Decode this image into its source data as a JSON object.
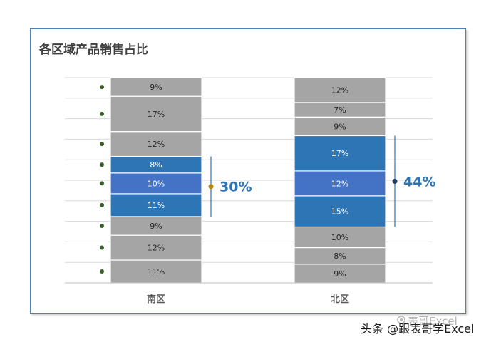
{
  "chart_data": {
    "type": "bar",
    "stacked": true,
    "percent_stacked": true,
    "title": "各区域产品销售占比",
    "categories": [
      "南区",
      "北区"
    ],
    "segments": [
      {
        "category": "南区",
        "values": [
          11,
          12,
          9,
          11,
          10,
          8,
          12,
          17,
          9
        ],
        "labels": [
          "11%",
          "12%",
          "9%",
          "11%",
          "10%",
          "8%",
          "12%",
          "17%",
          "9%"
        ],
        "highlight": [
          false,
          false,
          false,
          true,
          true,
          true,
          false,
          false,
          false
        ]
      },
      {
        "category": "北区",
        "values": [
          9,
          8,
          10,
          15,
          12,
          17,
          9,
          7,
          12
        ],
        "labels": [
          "9%",
          "8%",
          "10%",
          "15%",
          "12%",
          "17%",
          "9%",
          "7%",
          "12%"
        ],
        "highlight": [
          false,
          false,
          false,
          true,
          true,
          true,
          false,
          false,
          false
        ]
      }
    ],
    "bracket_labels": [
      "30%",
      "44%"
    ],
    "grid": true,
    "legend": "none"
  },
  "colors": {
    "gray": "#a5a5a5",
    "blue": "#2e75b6",
    "mid_blue": "#4472c4",
    "bracket": "#2e75b6",
    "south_marker": "#b8860b",
    "north_marker": "#1f3864",
    "dots": "#3a5f2b"
  },
  "watermark": {
    "text": "头条 @跟表哥学Excel",
    "ghost": "表哥Excel"
  }
}
